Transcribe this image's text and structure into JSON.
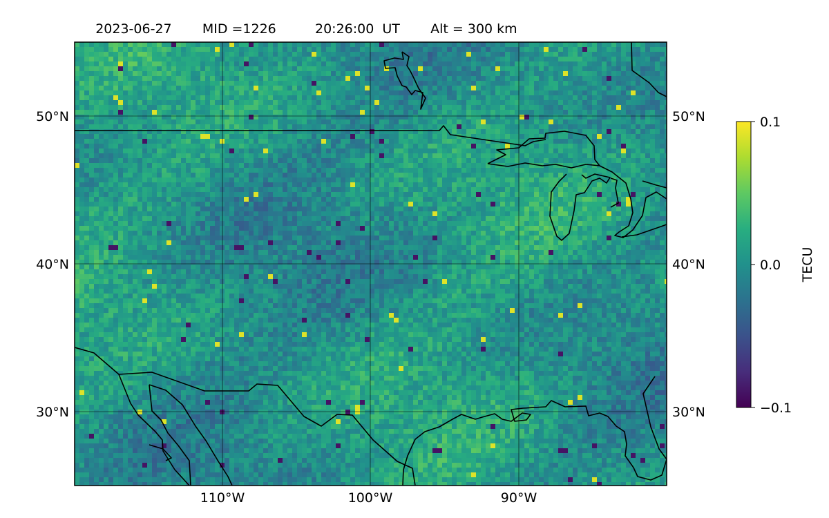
{
  "title": {
    "date": "2023-06-27",
    "mid": "MID =1226",
    "time": "20:26:00  UT",
    "alt": "Alt = 300 km"
  },
  "map": {
    "lon_range": [
      -120,
      -80
    ],
    "lat_range": [
      25,
      55
    ],
    "lon_ticks": [
      {
        "value": -110,
        "label": "110°W"
      },
      {
        "value": -100,
        "label": "100°W"
      },
      {
        "value": -90,
        "label": "90°W"
      }
    ],
    "lat_ticks": [
      {
        "value": 50,
        "label": "50°N"
      },
      {
        "value": 40,
        "label": "40°N"
      },
      {
        "value": 30,
        "label": "30°N"
      }
    ],
    "gridlines": true,
    "coastlines": true,
    "field": "differential TEC (detrended), gridded"
  },
  "colorbar": {
    "label": "TECU",
    "colormap": "viridis",
    "min": -0.1,
    "max": 0.1,
    "ticks": [
      {
        "value": 0.1,
        "label": "0.1"
      },
      {
        "value": 0.0,
        "label": "0.0"
      },
      {
        "value": -0.1,
        "label": "−0.1"
      }
    ]
  },
  "colors": {
    "frame": "#000000",
    "grid": "#000000",
    "coast": "#000000"
  }
}
